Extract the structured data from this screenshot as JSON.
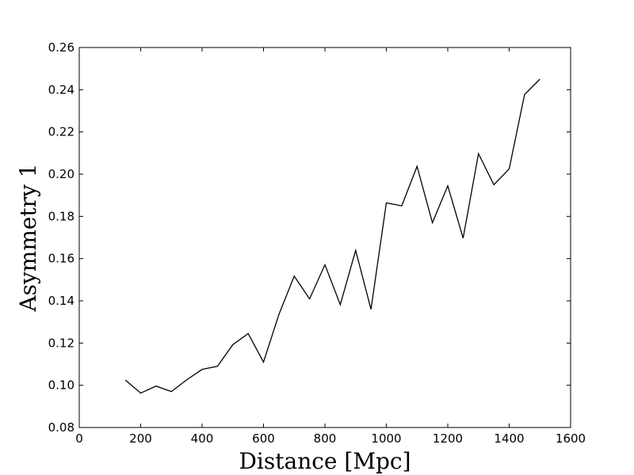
{
  "chart_data": {
    "type": "line",
    "title": "",
    "xlabel": "Distance [Mpc]",
    "ylabel": "Asymmetry 1",
    "xlim": [
      0,
      1600
    ],
    "ylim": [
      0.08,
      0.26
    ],
    "xticks": [
      0,
      200,
      400,
      600,
      800,
      1000,
      1200,
      1400,
      1600
    ],
    "xtick_labels": [
      "0",
      "200",
      "400",
      "600",
      "800",
      "1000",
      "1200",
      "1400",
      "1600"
    ],
    "yticks": [
      0.08,
      0.1,
      0.12,
      0.14,
      0.16,
      0.18,
      0.2,
      0.22,
      0.24,
      0.26
    ],
    "ytick_labels": [
      "0.08",
      "0.10",
      "0.12",
      "0.14",
      "0.16",
      "0.18",
      "0.20",
      "0.22",
      "0.24",
      "0.26"
    ],
    "grid": false,
    "line_color": "#000000",
    "series": [
      {
        "x": [
          150,
          200,
          250,
          300,
          350,
          400,
          450,
          500,
          550,
          600,
          650,
          700,
          750,
          800,
          850,
          900,
          950,
          1000,
          1050,
          1100,
          1150,
          1200,
          1250,
          1300,
          1350,
          1400,
          1450,
          1500
        ],
        "values": [
          0.1025,
          0.0963,
          0.0996,
          0.097,
          0.1026,
          0.1075,
          0.109,
          0.1192,
          0.1245,
          0.111,
          0.1335,
          0.1517,
          0.1409,
          0.1571,
          0.1382,
          0.1639,
          0.136,
          0.1864,
          0.185,
          0.2037,
          0.177,
          0.1945,
          0.1697,
          0.2097,
          0.195,
          0.2025,
          0.2377,
          0.245
        ]
      }
    ]
  }
}
